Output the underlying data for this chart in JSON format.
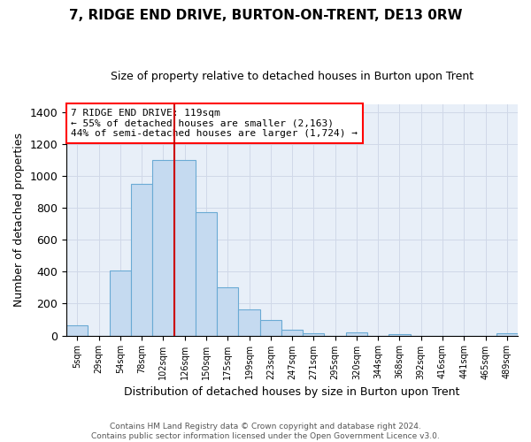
{
  "title": "7, RIDGE END DRIVE, BURTON-ON-TRENT, DE13 0RW",
  "subtitle": "Size of property relative to detached houses in Burton upon Trent",
  "xlabel": "Distribution of detached houses by size in Burton upon Trent",
  "ylabel": "Number of detached properties",
  "footer_line1": "Contains HM Land Registry data © Crown copyright and database right 2024.",
  "footer_line2": "Contains public sector information licensed under the Open Government Licence v3.0.",
  "bin_labels": [
    "5sqm",
    "29sqm",
    "54sqm",
    "78sqm",
    "102sqm",
    "126sqm",
    "150sqm",
    "175sqm",
    "199sqm",
    "223sqm",
    "247sqm",
    "271sqm",
    "295sqm",
    "320sqm",
    "344sqm",
    "368sqm",
    "392sqm",
    "416sqm",
    "441sqm",
    "465sqm",
    "489sqm"
  ],
  "bar_values": [
    65,
    0,
    405,
    950,
    1100,
    1100,
    775,
    305,
    165,
    100,
    35,
    15,
    0,
    18,
    0,
    10,
    0,
    0,
    0,
    0,
    13
  ],
  "bar_color": "#c5daf0",
  "bar_edge_color": "#6aaad4",
  "grid_color": "#d0d8e8",
  "bg_color": "#e8eff8",
  "vline_color": "#cc0000",
  "vline_x_idx": 5,
  "annotation_text": "7 RIDGE END DRIVE: 119sqm\n← 55% of detached houses are smaller (2,163)\n44% of semi-detached houses are larger (1,724) →",
  "ylim": [
    0,
    1450
  ],
  "yticks": [
    0,
    200,
    400,
    600,
    800,
    1000,
    1200,
    1400
  ]
}
